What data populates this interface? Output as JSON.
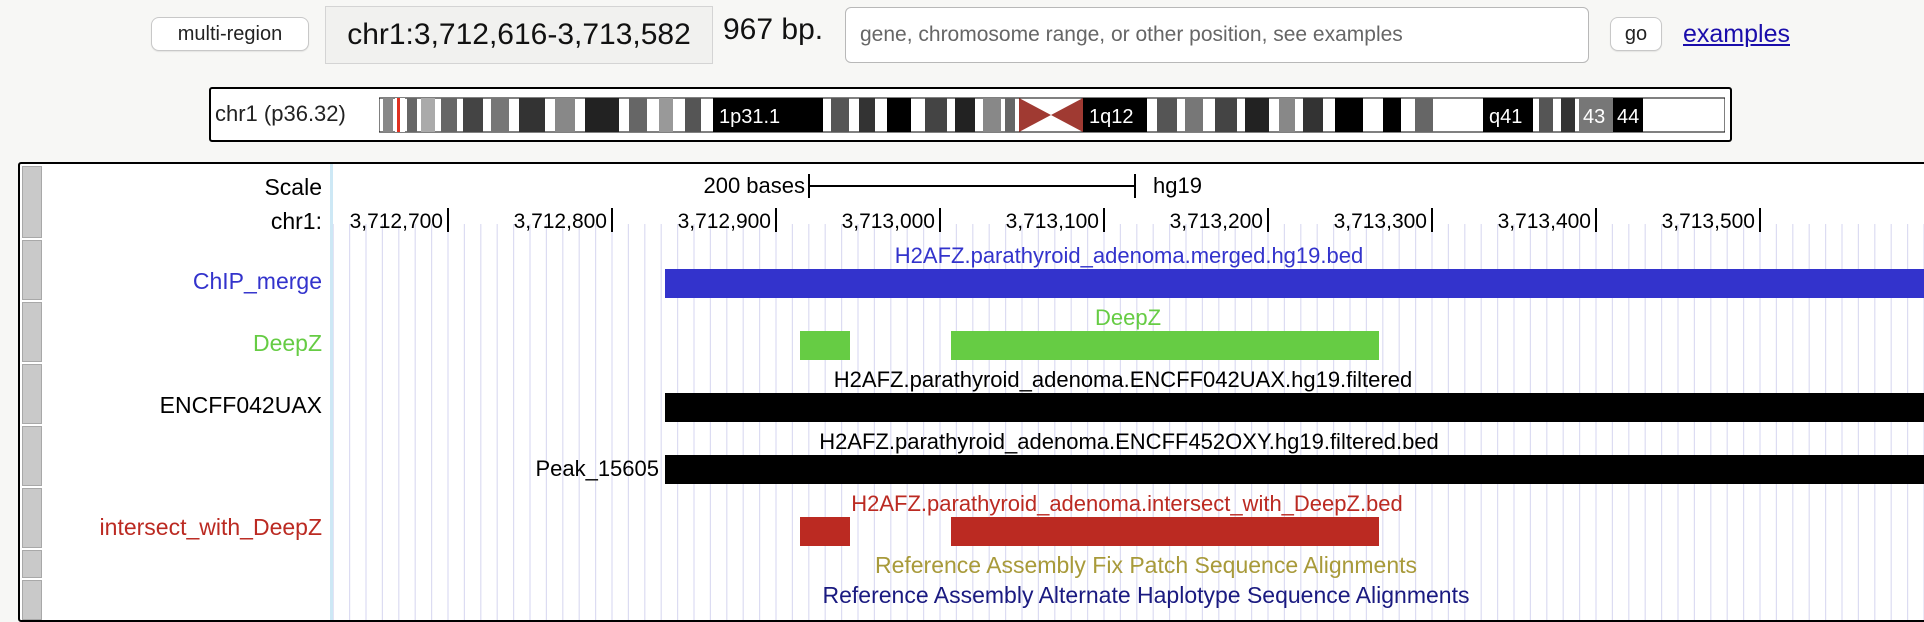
{
  "toolbar": {
    "multi_region_label": "multi-region",
    "position": "chr1:3,712,616-3,713,582",
    "size": "967 bp.",
    "search_placeholder": "gene, chromosome range, or other position, see examples",
    "go_label": "go",
    "examples_label": "examples"
  },
  "ideogram": {
    "label": "chr1 (p36.32)",
    "band_labels": [
      "1p31.1",
      "1q12",
      "q41",
      "43",
      "44"
    ]
  },
  "scale": {
    "label": "Scale",
    "bases": "200 bases",
    "assembly": "hg19",
    "chr_label": "chr1:",
    "ticks": [
      "3,712,700",
      "3,712,800",
      "3,712,900",
      "3,713,000",
      "3,713,100",
      "3,713,200",
      "3,713,300",
      "3,713,400",
      "3,713,500"
    ]
  },
  "tracks": {
    "chip": {
      "label": "ChIP_merge",
      "title": "H2AFZ.parathyroid_adenoma.merged.hg19.bed",
      "color": "#3333cc"
    },
    "deepz": {
      "label": "DeepZ",
      "title": "DeepZ",
      "color": "#66cc44"
    },
    "encff042": {
      "label": "ENCFF042UAX",
      "title": "H2AFZ.parathyroid_adenoma.ENCFF042UAX.hg19.filtered",
      "color": "#000000"
    },
    "encff452": {
      "label": "Peak_15605",
      "title": "H2AFZ.parathyroid_adenoma.ENCFF452OXY.hg19.filtered.bed",
      "color": "#000000"
    },
    "intersect": {
      "label": "intersect_with_DeepZ",
      "title": "H2AFZ.parathyroid_adenoma.intersect_with_DeepZ.bed",
      "color": "#bb2a22"
    },
    "fix_patch": {
      "title": "Reference Assembly Fix Patch Sequence Alignments",
      "color": "#a89a3a"
    },
    "alt_haplo": {
      "title": "Reference Assembly Alternate Haplotype Sequence Alignments",
      "color": "#1a1a80"
    }
  }
}
